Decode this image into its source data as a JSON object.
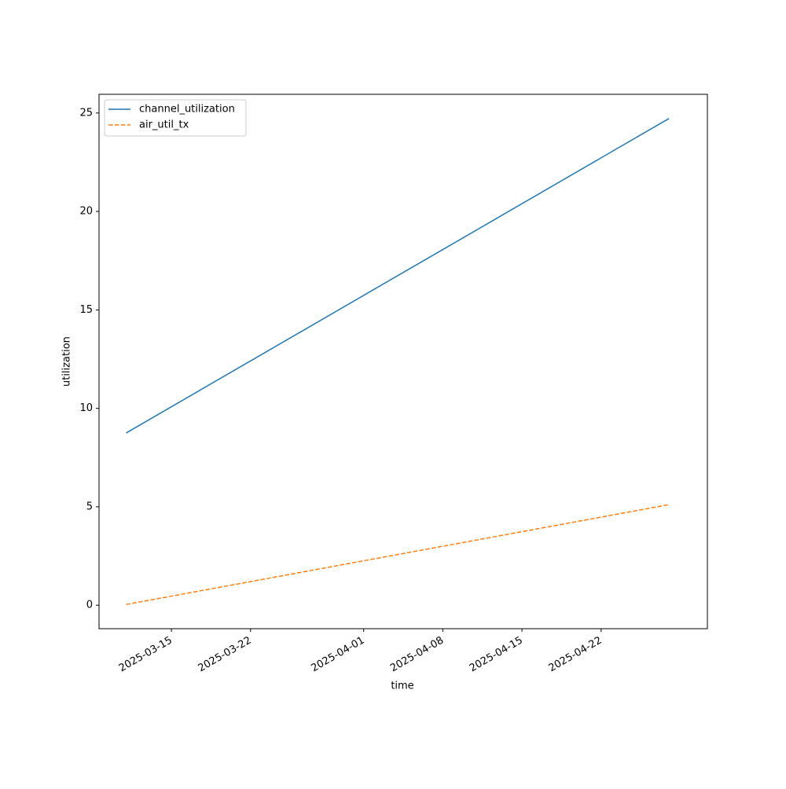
{
  "chart_data": {
    "type": "line",
    "x_label": "time",
    "y_label": "utilization",
    "x": [
      "2025-03-11",
      "2025-04-28"
    ],
    "series": [
      {
        "name": "channel_utilization",
        "color": "#1f77b4",
        "linestyle": "solid",
        "values": [
          8.75,
          24.72
        ]
      },
      {
        "name": "air_util_tx",
        "color": "#ff7f0e",
        "linestyle": "dashed",
        "values": [
          0.04,
          5.11
        ]
      }
    ],
    "xlim": [
      "2025-03-08T14:24",
      "2025-05-01T09:36"
    ],
    "xticks": [
      "2025-03-15",
      "2025-03-22",
      "2025-04-01",
      "2025-04-08",
      "2025-04-15",
      "2025-04-22"
    ],
    "ylim": [
      -1.19,
      25.95
    ],
    "yticks": [
      0,
      5,
      10,
      15,
      20,
      25
    ],
    "grid": false,
    "legend": "upper left"
  }
}
